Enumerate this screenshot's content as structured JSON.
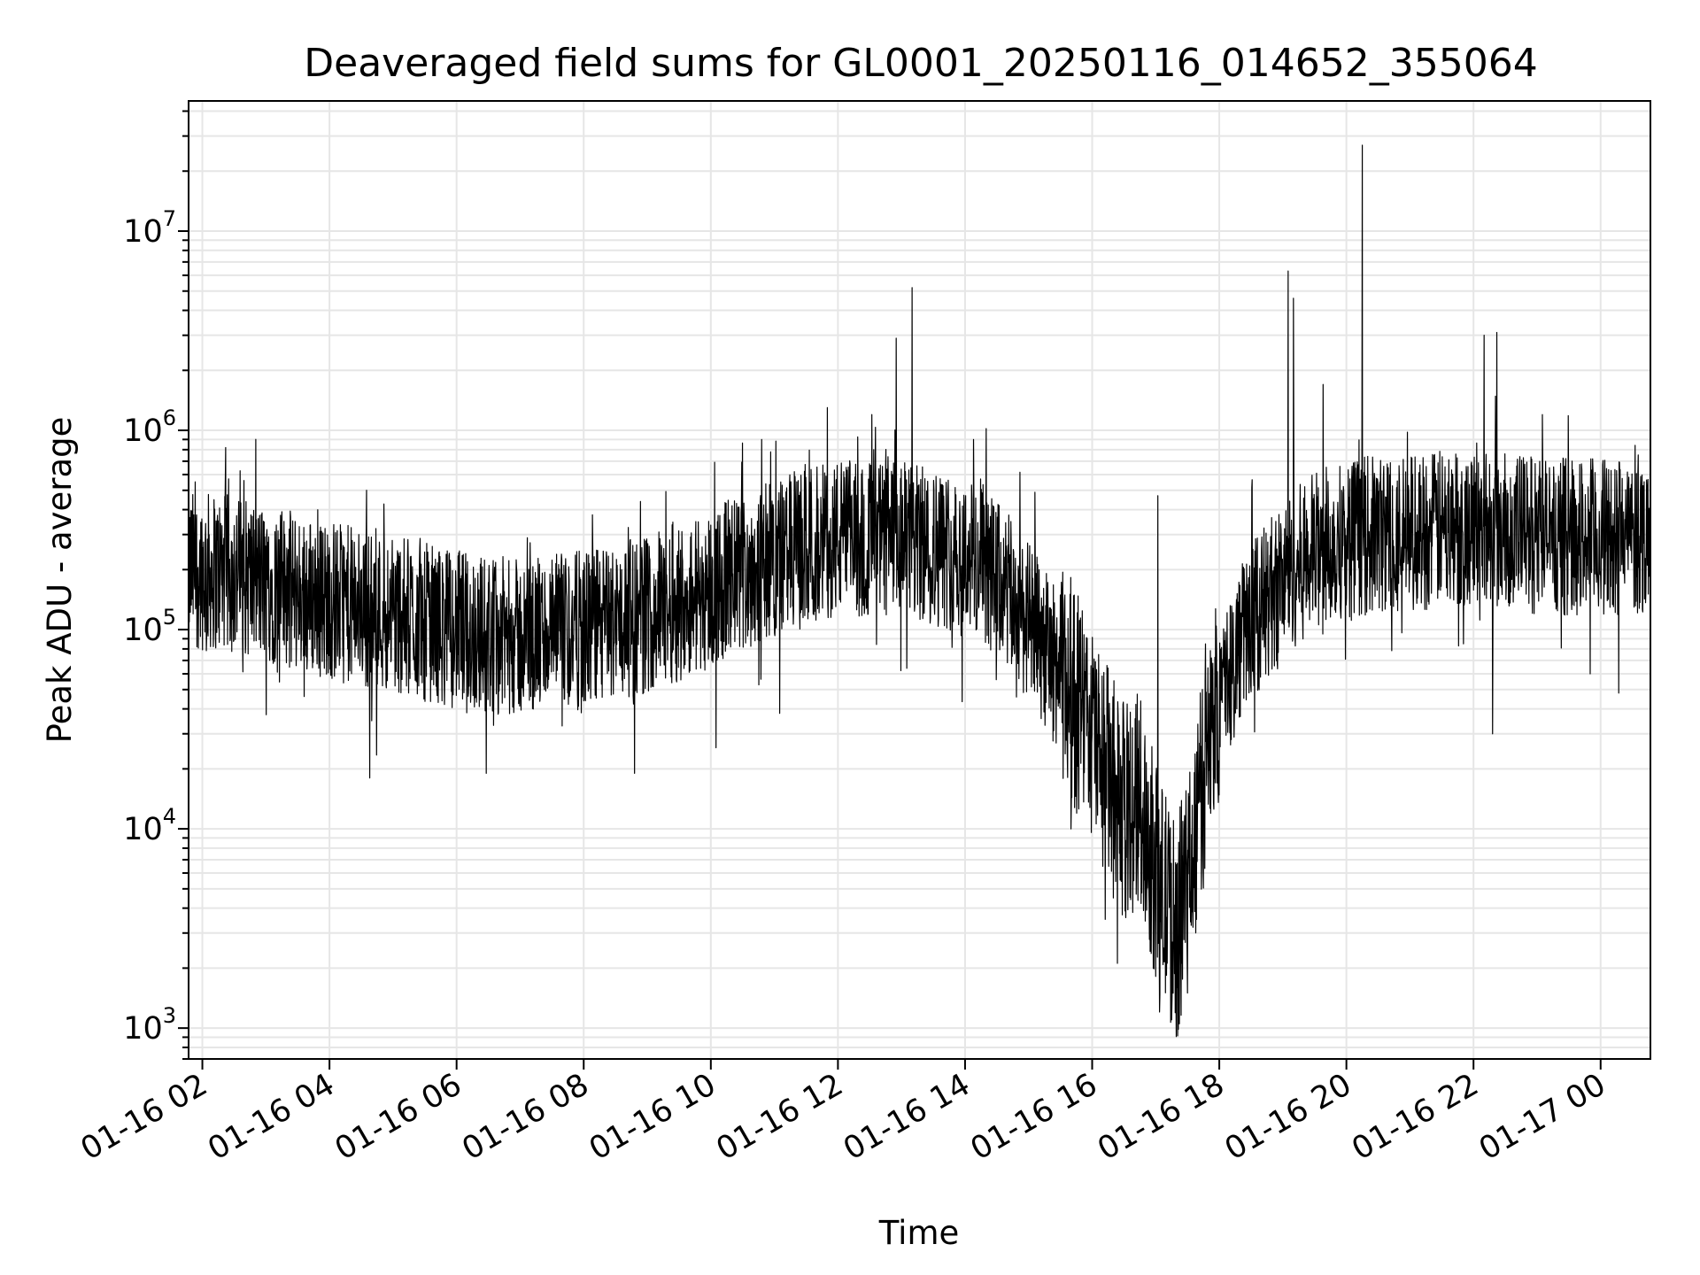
{
  "chart_data": {
    "type": "line",
    "title": "Deaveraged field sums for GL0001_20250116_014652_355064",
    "xlabel": "Time",
    "ylabel": "Peak ADU - average",
    "yscale": "log",
    "ylim": [
      700,
      45000000
    ],
    "xlim": [
      "2025-01-16T01:47",
      "2025-01-17T00:47"
    ],
    "grid": true,
    "line_color": "#000000",
    "grid_color": "#e6e6e6",
    "x_ticks": [
      {
        "t": "2025-01-16T02:00",
        "label": "01-16 02"
      },
      {
        "t": "2025-01-16T04:00",
        "label": "01-16 04"
      },
      {
        "t": "2025-01-16T06:00",
        "label": "01-16 06"
      },
      {
        "t": "2025-01-16T08:00",
        "label": "01-16 08"
      },
      {
        "t": "2025-01-16T10:00",
        "label": "01-16 10"
      },
      {
        "t": "2025-01-16T12:00",
        "label": "01-16 12"
      },
      {
        "t": "2025-01-16T14:00",
        "label": "01-16 14"
      },
      {
        "t": "2025-01-16T16:00",
        "label": "01-16 16"
      },
      {
        "t": "2025-01-16T18:00",
        "label": "01-16 18"
      },
      {
        "t": "2025-01-16T20:00",
        "label": "01-16 20"
      },
      {
        "t": "2025-01-16T22:00",
        "label": "01-16 22"
      },
      {
        "t": "2025-01-17T00:00",
        "label": "01-17 00"
      }
    ],
    "y_ticks": [
      {
        "value": 1000,
        "base": "10",
        "exp": "3"
      },
      {
        "value": 10000,
        "base": "10",
        "exp": "4"
      },
      {
        "value": 100000,
        "base": "10",
        "exp": "5"
      },
      {
        "value": 1000000,
        "base": "10",
        "exp": "6"
      },
      {
        "value": 10000000,
        "base": "10",
        "exp": "7"
      }
    ],
    "series": [
      {
        "points": [
          [
            "2025-01-16T01:47",
            200000
          ],
          [
            "2025-01-16T02:30",
            190000
          ],
          [
            "2025-01-16T03:00",
            170000
          ],
          [
            "2025-01-16T04:00",
            140000
          ],
          [
            "2025-01-16T05:00",
            120000
          ],
          [
            "2025-01-16T06:00",
            100000
          ],
          [
            "2025-01-16T07:00",
            90000
          ],
          [
            "2025-01-16T08:00",
            100000
          ],
          [
            "2025-01-16T09:00",
            120000
          ],
          [
            "2025-01-16T10:00",
            160000
          ],
          [
            "2025-01-16T11:00",
            230000
          ],
          [
            "2025-01-16T12:00",
            290000
          ],
          [
            "2025-01-16T13:00",
            280000
          ],
          [
            "2025-01-16T14:00",
            240000
          ],
          [
            "2025-01-16T14:30",
            180000
          ],
          [
            "2025-01-16T15:00",
            110000
          ],
          [
            "2025-01-16T15:30",
            60000
          ],
          [
            "2025-01-16T16:00",
            30000
          ],
          [
            "2025-01-16T16:30",
            12000
          ],
          [
            "2025-01-16T16:45",
            15000
          ],
          [
            "2025-01-16T17:00",
            6000
          ],
          [
            "2025-01-16T17:20",
            3000
          ],
          [
            "2025-01-16T17:40",
            12000
          ],
          [
            "2025-01-16T18:00",
            50000
          ],
          [
            "2025-01-16T18:30",
            110000
          ],
          [
            "2025-01-16T19:00",
            180000
          ],
          [
            "2025-01-16T19:30",
            250000
          ],
          [
            "2025-01-16T20:00",
            290000
          ],
          [
            "2025-01-16T21:00",
            310000
          ],
          [
            "2025-01-16T22:00",
            330000
          ],
          [
            "2025-01-16T23:00",
            300000
          ],
          [
            "2025-01-17T00:00",
            290000
          ],
          [
            "2025-01-17T00:47",
            300000
          ]
        ],
        "spikes": [
          [
            "2025-01-16T02:22",
            820000
          ],
          [
            "2025-01-16T04:35",
            500000
          ],
          [
            "2025-01-16T10:48",
            900000
          ],
          [
            "2025-01-16T11:50",
            1300000
          ],
          [
            "2025-01-16T12:32",
            1200000
          ],
          [
            "2025-01-16T12:55",
            2900000
          ],
          [
            "2025-01-16T13:10",
            5200000
          ],
          [
            "2025-01-16T14:08",
            900000
          ],
          [
            "2025-01-16T17:02",
            470000
          ],
          [
            "2025-01-16T19:05",
            6300000
          ],
          [
            "2025-01-16T19:10",
            4600000
          ],
          [
            "2025-01-16T19:38",
            1700000
          ],
          [
            "2025-01-16T20:15",
            27000000
          ],
          [
            "2025-01-16T22:10",
            3000000
          ],
          [
            "2025-01-16T22:22",
            3100000
          ],
          [
            "2025-01-16T23:05",
            1200000
          ]
        ],
        "dips": [
          [
            "2025-01-16T04:38",
            18000
          ],
          [
            "2025-01-16T06:28",
            19000
          ],
          [
            "2025-01-16T08:48",
            19000
          ],
          [
            "2025-01-16T11:05",
            38000
          ],
          [
            "2025-01-16T15:40",
            10000
          ],
          [
            "2025-01-16T16:20",
            4500
          ],
          [
            "2025-01-16T17:15",
            1100
          ],
          [
            "2025-01-16T17:30",
            1500
          ],
          [
            "2025-01-16T22:18",
            30000
          ]
        ]
      }
    ]
  }
}
